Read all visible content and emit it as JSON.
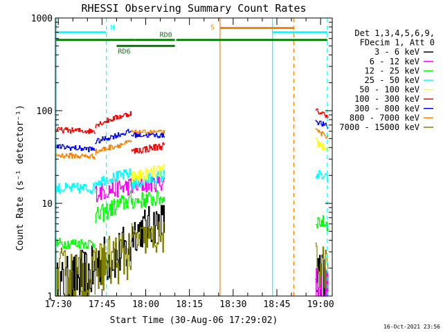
{
  "chart_data": {
    "type": "line",
    "title": "RHESSI Observing Summary Count Rates",
    "xlabel": "Start Time (30-Aug-06 17:29:02)",
    "ylabel": "Count Rate (s⁻¹ detector⁻¹)",
    "x_unit": "minutes after 17:29:02",
    "xlim": [
      0,
      95
    ],
    "ylim": [
      1,
      1000
    ],
    "yscale": "log",
    "x_ticks": [
      {
        "t": 1,
        "label": "17:30"
      },
      {
        "t": 16,
        "label": "17:45"
      },
      {
        "t": 31,
        "label": "18:00"
      },
      {
        "t": 46,
        "label": "18:15"
      },
      {
        "t": 61,
        "label": "18:30"
      },
      {
        "t": 76,
        "label": "18:45"
      },
      {
        "t": 91,
        "label": "19:00"
      }
    ],
    "y_ticks": [
      {
        "v": 1,
        "label": "1"
      },
      {
        "v": 10,
        "label": "10"
      },
      {
        "v": 100,
        "label": "100"
      },
      {
        "v": 1000,
        "label": "1000"
      }
    ],
    "legend_header": [
      "Det 1,3,4,5,6,9,",
      "FDecim 1, Att 0"
    ],
    "legend_position": "right",
    "segment_breaks": [
      13.6,
      26.0
    ],
    "series": [
      {
        "name": "3 - 6 keV",
        "color": "#000000",
        "values": [
          {
            "t0": 0,
            "t1": 13.6,
            "v": [
              1.2,
              1.8
            ],
            "noise": 0.3
          },
          {
            "t0": 13.6,
            "t1": 26.0,
            "v": [
              2.2,
              3.2
            ],
            "noise": 0.28
          },
          {
            "t0": 26.0,
            "t1": 37.4,
            "v": [
              4.8,
              6.5
            ],
            "noise": 0.22
          },
          {
            "t0": 89.2,
            "t1": 93.5,
            "v": [
              1.6,
              1.2
            ],
            "noise": 0.35
          }
        ]
      },
      {
        "name": "6 - 12 keV",
        "color": "#ff00ff",
        "values": [
          {
            "t0": 13.6,
            "t1": 26.0,
            "v": [
              13.0,
              15.5
            ],
            "noise": 0.1
          },
          {
            "t0": 26.0,
            "t1": 37.4,
            "v": [
              15.0,
              17.0
            ],
            "noise": 0.09
          },
          {
            "t0": 89.2,
            "t1": 93.5,
            "v": [
              1.5,
              1.1
            ],
            "noise": 0.3
          }
        ]
      },
      {
        "name": "12 - 25 keV",
        "color": "#00ff00",
        "values": [
          {
            "t0": 0,
            "t1": 13.6,
            "v": [
              3.7,
              3.7
            ],
            "noise": 0.06
          },
          {
            "t0": 13.6,
            "t1": 26.0,
            "v": [
              7.0,
              11.0
            ],
            "noise": 0.1
          },
          {
            "t0": 26.0,
            "t1": 37.4,
            "v": [
              10.5,
              11.5
            ],
            "noise": 0.09
          },
          {
            "t0": 89.2,
            "t1": 93.5,
            "v": [
              6.5,
              6.0
            ],
            "noise": 0.08
          }
        ]
      },
      {
        "name": "25 - 50 keV",
        "color": "#00ffff",
        "values": [
          {
            "t0": 0,
            "t1": 13.6,
            "v": [
              14.5,
              14.5
            ],
            "noise": 0.06
          },
          {
            "t0": 13.6,
            "t1": 26.0,
            "v": [
              17.0,
              21.0
            ],
            "noise": 0.06
          },
          {
            "t0": 26.0,
            "t1": 37.4,
            "v": [
              16.0,
              20.0
            ],
            "noise": 0.07
          },
          {
            "t0": 89.2,
            "t1": 93.5,
            "v": [
              21.0,
              18.0
            ],
            "noise": 0.06
          }
        ]
      },
      {
        "name": "50 - 100 keV",
        "color": "#ffff00",
        "values": [
          {
            "t0": 26.0,
            "t1": 37.4,
            "v": [
              19.0,
              23.0
            ],
            "noise": 0.07
          },
          {
            "t0": 89.2,
            "t1": 93.5,
            "v": [
              46.0,
              38.0
            ],
            "noise": 0.05
          }
        ]
      },
      {
        "name": "100 - 300 keV",
        "color": "#ff0000",
        "values": [
          {
            "t0": 0,
            "t1": 13.6,
            "v": [
              62.0,
              60.0
            ],
            "noise": 0.03
          },
          {
            "t0": 13.6,
            "t1": 26.0,
            "v": [
              70.0,
              94.0
            ],
            "noise": 0.03
          },
          {
            "t0": 26.0,
            "t1": 37.4,
            "v": [
              36.0,
              42.0
            ],
            "noise": 0.04
          },
          {
            "t0": 89.2,
            "t1": 93.5,
            "v": [
              100.0,
              88.0
            ],
            "noise": 0.03
          }
        ]
      },
      {
        "name": "300 - 800 keV",
        "color": "#0000ff",
        "values": [
          {
            "t0": 0,
            "t1": 13.6,
            "v": [
              41.0,
              38.0
            ],
            "noise": 0.03
          },
          {
            "t0": 13.6,
            "t1": 26.0,
            "v": [
              46.0,
              60.0
            ],
            "noise": 0.03
          },
          {
            "t0": 26.0,
            "t1": 37.4,
            "v": [
              55.0,
              54.0
            ],
            "noise": 0.03
          },
          {
            "t0": 89.2,
            "t1": 93.5,
            "v": [
              78.0,
              66.0
            ],
            "noise": 0.03
          }
        ]
      },
      {
        "name": "800 - 7000 keV",
        "color": "#ff8000",
        "values": [
          {
            "t0": 0,
            "t1": 13.6,
            "v": [
              33.0,
              32.0
            ],
            "noise": 0.03
          },
          {
            "t0": 13.6,
            "t1": 26.0,
            "v": [
              36.0,
              46.0
            ],
            "noise": 0.03
          },
          {
            "t0": 26.0,
            "t1": 37.4,
            "v": [
              59.0,
              59.0
            ],
            "noise": 0.02
          },
          {
            "t0": 89.2,
            "t1": 93.5,
            "v": [
              60.0,
              53.0
            ],
            "noise": 0.03
          }
        ]
      },
      {
        "name": "7000 - 15000 keV",
        "color": "#808000",
        "values": [
          {
            "t0": 0,
            "t1": 13.6,
            "v": [
              1.7,
              1.6
            ],
            "noise": 0.3
          },
          {
            "t0": 13.6,
            "t1": 26.0,
            "v": [
              2.0,
              3.0
            ],
            "noise": 0.3
          },
          {
            "t0": 26.0,
            "t1": 37.4,
            "v": [
              4.0,
              4.3
            ],
            "noise": 0.18
          },
          {
            "t0": 89.2,
            "t1": 93.5,
            "v": [
              2.3,
              2.0
            ],
            "noise": 0.25
          }
        ]
      }
    ],
    "annotations": {
      "vlines": [
        {
          "t": 0.3,
          "color": "#00ffff",
          "style": "solid"
        },
        {
          "t": 17.5,
          "color": "#00ffff",
          "style": "dashed"
        },
        {
          "t": 56.5,
          "color": "#ff8000",
          "style": "solid"
        },
        {
          "t": 74.5,
          "color": "#00ffff",
          "style": "solid"
        },
        {
          "t": 81.8,
          "color": "#ff8000",
          "style": "dashed"
        },
        {
          "t": 93.3,
          "color": "#00ffff",
          "style": "dashed"
        }
      ],
      "bars": [
        {
          "label": "N",
          "t0": 0.3,
          "t1": 17.5,
          "y": 700,
          "color": "#00ffff"
        },
        {
          "label": "",
          "t0": 74.5,
          "t1": 93.3,
          "y": 700,
          "color": "#00ffff"
        },
        {
          "label": "S",
          "t0": 56.5,
          "t1": 81.8,
          "y": 780,
          "color": "#ff8000"
        },
        {
          "label": "",
          "t0": 0.3,
          "t1": 27.5,
          "y": 580,
          "color": "#008000"
        },
        {
          "label": "RD0",
          "t0": 27.5,
          "t1": 41.0,
          "y": 580,
          "color": "#008000"
        },
        {
          "label": "",
          "t0": 41.5,
          "t1": 93.3,
          "y": 580,
          "color": "#008000"
        },
        {
          "label": "RD6",
          "t0": 21.0,
          "t1": 41.0,
          "y": 500,
          "color": "#008000"
        }
      ]
    }
  },
  "timestamp": "16-Oct-2021 23:56"
}
